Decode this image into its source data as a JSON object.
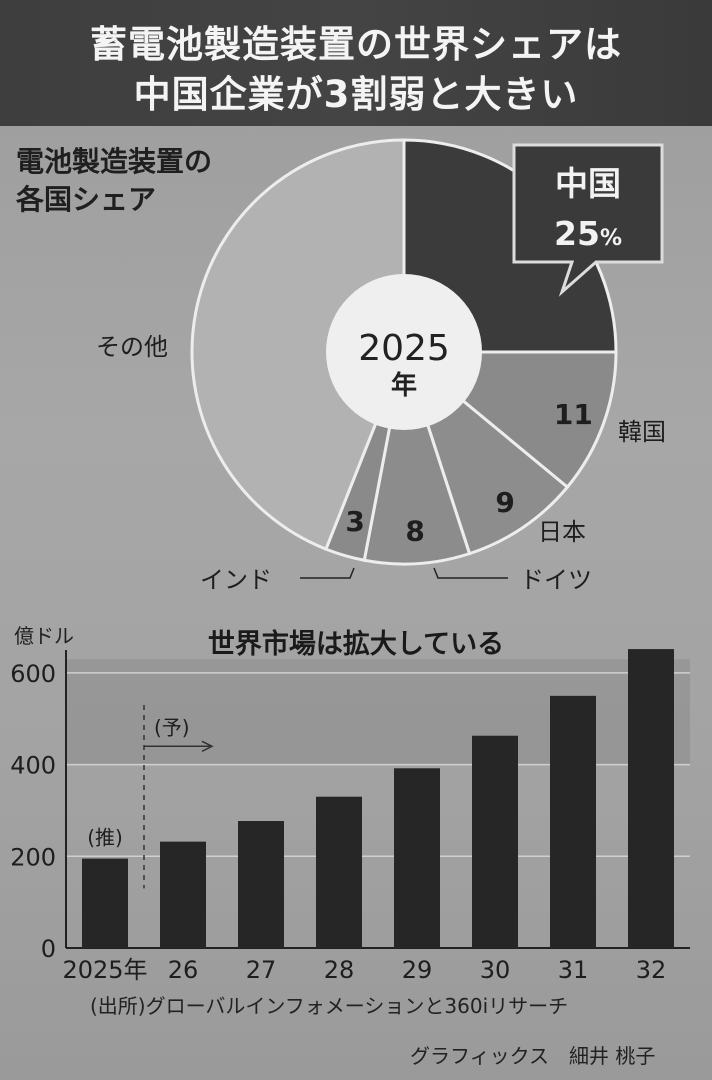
{
  "header": {
    "line1": "蓄電池製造装置の世界シェアは",
    "line2": "中国企業が3割弱と大きい"
  },
  "pie": {
    "subtitle_line1": "電池製造装置の",
    "subtitle_line2": "各国シェア",
    "center_year": "2025",
    "center_unit": "年",
    "china_percent_suffix": "%",
    "slices": [
      {
        "name": "中国",
        "value": 25,
        "label": "25",
        "color": "#3b3b3b"
      },
      {
        "name": "韓国",
        "value": 11,
        "label": "11",
        "color": "#8a8a8a"
      },
      {
        "name": "日本",
        "value": 9,
        "label": "9",
        "color": "#8d8d8d"
      },
      {
        "name": "ドイツ",
        "value": 8,
        "label": "8",
        "color": "#8c8c8c"
      },
      {
        "name": "インド",
        "value": 3,
        "label": "3",
        "color": "#8a8a8a"
      },
      {
        "name": "その他",
        "value": 44,
        "label": "",
        "color": "#b2b2b2"
      }
    ]
  },
  "chart_data": {
    "type": "bar",
    "title": "世界市場は拡大している",
    "ylabel": "億ドル",
    "ylim": [
      0,
      650
    ],
    "yticks": [
      0,
      200,
      400,
      600
    ],
    "categories": [
      "2025年",
      "26",
      "27",
      "28",
      "29",
      "30",
      "31",
      "32"
    ],
    "values": [
      195,
      232,
      277,
      330,
      392,
      463,
      550,
      652
    ],
    "annotations": {
      "estimate": "(推)",
      "forecast": "(予)"
    }
  },
  "footer": {
    "source": "(出所)グローバルインフォメーションと360iリサーチ",
    "credit": "グラフィックス　細井 桃子"
  }
}
